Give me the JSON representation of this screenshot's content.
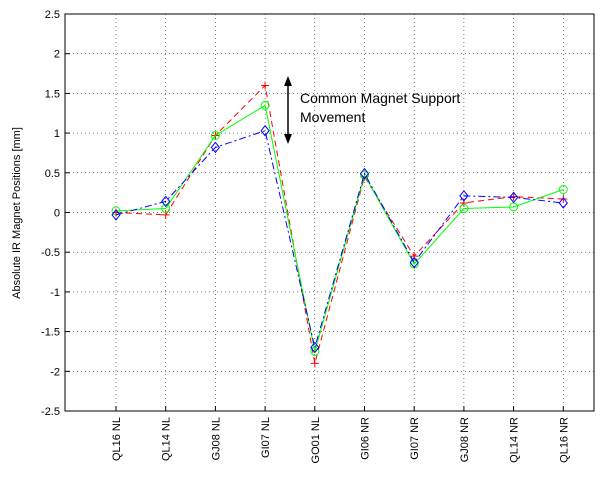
{
  "chart_data": {
    "type": "line",
    "y_label": "Absolute IR Magnet Positions [mm]",
    "annotation": [
      "Common Magnet Support",
      "Movement"
    ],
    "categories": [
      "QL16 NL",
      "QL14 NL",
      "GJ08 NL",
      "GI07 NL",
      "GO01 NL",
      "GI06 NR",
      "GI07 NR",
      "GJ08 NR",
      "QL14 NR",
      "QL16 NR"
    ],
    "series": [
      {
        "color": "#ff0000",
        "dash": "6,4",
        "marker": "plus",
        "values": [
          0,
          -0.03,
          0.97,
          1.6,
          -1.9,
          0.45,
          -0.55,
          0.12,
          0.2,
          0.17
        ]
      },
      {
        "color": "#00ff00",
        "dash": "none",
        "marker": "circle",
        "values": [
          0.02,
          0.05,
          0.97,
          1.35,
          -1.75,
          0.47,
          -0.65,
          0.05,
          0.07,
          0.29
        ]
      },
      {
        "color": "#0000ff",
        "dash": "7,3,2,3",
        "marker": "diamond",
        "values": [
          -0.03,
          0.14,
          0.82,
          1.03,
          -1.7,
          0.49,
          -0.63,
          0.21,
          0.19,
          0.12
        ]
      }
    ],
    "ylim": [
      -2.5,
      2.5
    ],
    "yticks": [
      -2.5,
      -2,
      -1.5,
      -1,
      -0.5,
      0,
      0.5,
      1,
      1.5,
      2,
      2.5
    ],
    "grid": true
  }
}
